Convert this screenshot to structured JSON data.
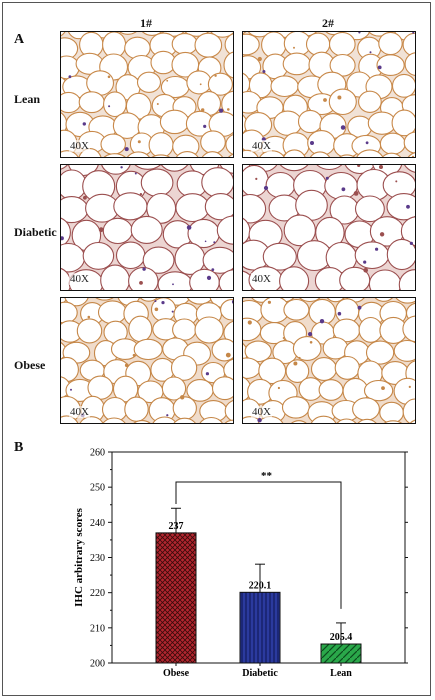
{
  "panel_a": {
    "letter": "A",
    "columns": [
      "1#",
      "2#"
    ],
    "rows": [
      "Lean",
      "Diabetic",
      "Obese"
    ],
    "magnification": "40X",
    "tint_colors": {
      "Lean": "#f1e2d6",
      "Diabetic": "#ecd5d2",
      "Obese": "#f0dccb"
    },
    "membrane_colors": {
      "Lean": "#c8894a",
      "Diabetic": "#9b4f4f",
      "Obese": "#c58748"
    }
  },
  "panel_b": {
    "letter": "B",
    "significance": "**"
  },
  "chart_data": {
    "type": "bar",
    "categories": [
      "Obese",
      "Diabetic",
      "Lean"
    ],
    "values": [
      237,
      220.1,
      205.4
    ],
    "errors": [
      7,
      8,
      6
    ],
    "value_labels": [
      "237",
      "220.1",
      "205.4"
    ],
    "ylabel": "IHC arbitrary scores",
    "ylim": [
      200,
      260
    ],
    "yticks": [
      200,
      210,
      220,
      230,
      240,
      250,
      260
    ],
    "bar_colors": [
      "#b32630",
      "#2b3a9e",
      "#2aa84a"
    ],
    "bar_patterns": [
      "crosshatch",
      "vertical",
      "diagonal"
    ],
    "significance_pair": [
      "Obese",
      "Lean"
    ]
  }
}
